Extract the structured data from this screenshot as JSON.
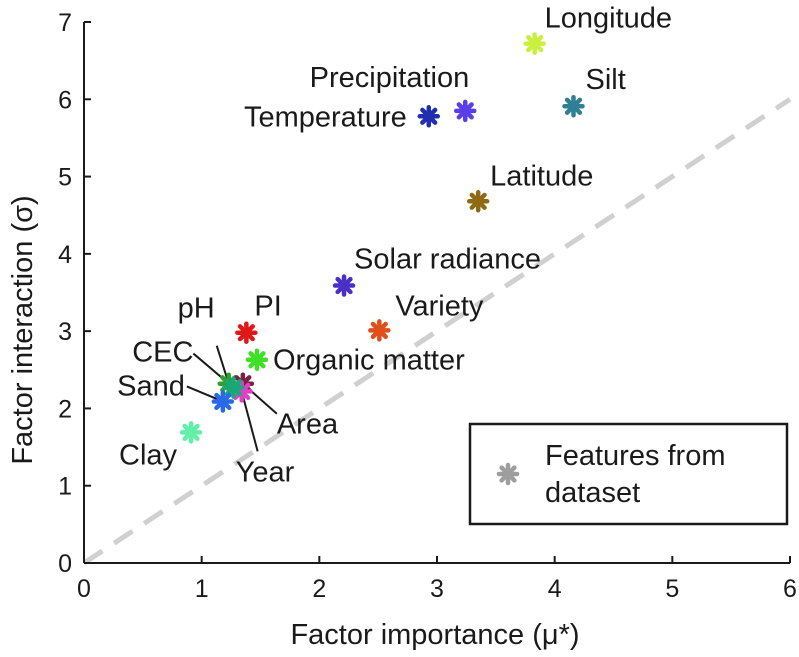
{
  "chart_data": {
    "type": "scatter",
    "xlabel": "Factor importance (μ*)",
    "ylabel": "Factor interaction (σ)",
    "xlim": [
      0,
      6
    ],
    "ylim": [
      0,
      7
    ],
    "xticks": [
      "0",
      "1",
      "2",
      "3",
      "4",
      "5",
      "6"
    ],
    "yticks": [
      "0",
      "1",
      "2",
      "3",
      "4",
      "5",
      "6",
      "7"
    ],
    "grid": false,
    "reference_line": {
      "style": "dashed",
      "color": "#d0d0d0",
      "from": [
        0,
        0
      ],
      "to": [
        6,
        6
      ]
    },
    "legend": {
      "placement": "bottom-right",
      "label": "Features from dataset",
      "marker_color": "#9e9e9e"
    },
    "points": [
      {
        "label": "Longitude",
        "x": 3.83,
        "y": 6.72,
        "color": "#c8f03c"
      },
      {
        "label": "Silt",
        "x": 4.16,
        "y": 5.91,
        "color": "#2f7f95"
      },
      {
        "label": "Precipitation",
        "x": 3.24,
        "y": 5.85,
        "color": "#5a3ee8"
      },
      {
        "label": "Temperature",
        "x": 2.93,
        "y": 5.78,
        "color": "#1f2fb0"
      },
      {
        "label": "Latitude",
        "x": 3.35,
        "y": 4.68,
        "color": "#8f6a15"
      },
      {
        "label": "Solar radiance",
        "x": 2.21,
        "y": 3.59,
        "color": "#4a30c8"
      },
      {
        "label": "Variety",
        "x": 2.51,
        "y": 3.01,
        "color": "#e0501c"
      },
      {
        "label": "PI",
        "x": 1.38,
        "y": 2.98,
        "color": "#e01818"
      },
      {
        "label": "Organic matter",
        "x": 1.47,
        "y": 2.63,
        "color": "#40e028"
      },
      {
        "label": "pH",
        "x": 1.23,
        "y": 2.32,
        "color": "#2ea02e"
      },
      {
        "label": "Area",
        "x": 1.35,
        "y": 2.32,
        "color": "#7a2040"
      },
      {
        "label": "Year",
        "x": 1.34,
        "y": 2.22,
        "color": "#e040c8"
      },
      {
        "label": "CEC",
        "x": 1.27,
        "y": 2.27,
        "color": "#18a878"
      },
      {
        "label": "Sand",
        "x": 1.18,
        "y": 2.09,
        "color": "#2a6ae8"
      },
      {
        "label": "Clay",
        "x": 0.91,
        "y": 1.69,
        "color": "#60f0a8"
      }
    ]
  }
}
